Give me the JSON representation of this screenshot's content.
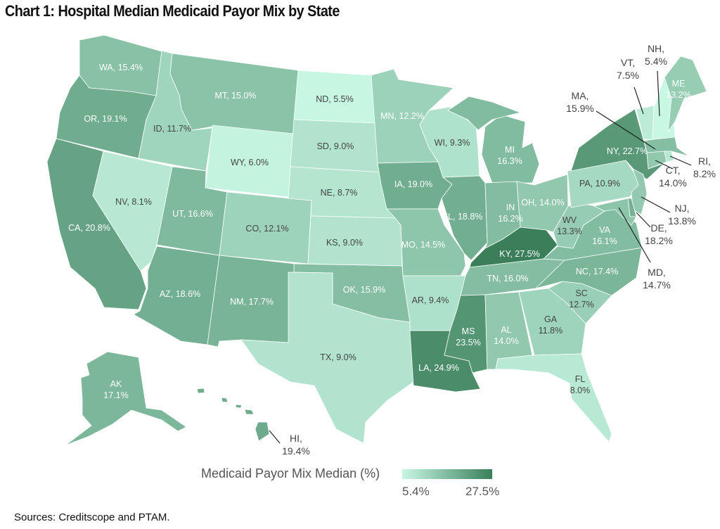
{
  "title": "Chart 1: Hospital Median Medicaid Payor Mix by State",
  "sources": "Sources: Creditscope and PTAM.",
  "chart_data": {
    "type": "choropleth",
    "title": "Chart 1: Hospital Median Medicaid Payor Mix by State",
    "legend": {
      "title": "Medicaid Payor Mix Median (%)",
      "min_label": "5.4%",
      "max_label": "27.5%",
      "min": 5.4,
      "max": 27.5,
      "min_color": "#c8f7e4",
      "max_color": "#3a7f5a",
      "placement": "bottom-center"
    },
    "states": [
      {
        "abbr": "WA",
        "value": 15.4,
        "label": [
          "WA, 15.4%"
        ]
      },
      {
        "abbr": "OR",
        "value": 19.1,
        "label": [
          "OR, 19.1%"
        ]
      },
      {
        "abbr": "CA",
        "value": 20.8,
        "label": [
          "CA, 20.8%"
        ]
      },
      {
        "abbr": "NV",
        "value": 8.1,
        "label": [
          "NV, 8.1%"
        ]
      },
      {
        "abbr": "ID",
        "value": 11.7,
        "label": [
          "ID, 11.7%"
        ]
      },
      {
        "abbr": "MT",
        "value": 15.0,
        "label": [
          "MT, 15.0%"
        ]
      },
      {
        "abbr": "WY",
        "value": 6.0,
        "label": [
          "WY, 6.0%"
        ]
      },
      {
        "abbr": "UT",
        "value": 16.6,
        "label": [
          "UT, 16.6%"
        ]
      },
      {
        "abbr": "AZ",
        "value": 18.6,
        "label": [
          "AZ, 18.6%"
        ]
      },
      {
        "abbr": "CO",
        "value": 12.1,
        "label": [
          "CO, 12.1%"
        ]
      },
      {
        "abbr": "NM",
        "value": 17.7,
        "label": [
          "NM, 17.7%"
        ]
      },
      {
        "abbr": "ND",
        "value": 5.5,
        "label": [
          "ND, 5.5%"
        ]
      },
      {
        "abbr": "SD",
        "value": 9.0,
        "label": [
          "SD, 9.0%"
        ]
      },
      {
        "abbr": "NE",
        "value": 8.7,
        "label": [
          "NE, 8.7%"
        ]
      },
      {
        "abbr": "KS",
        "value": 9.0,
        "label": [
          "KS, 9.0%"
        ]
      },
      {
        "abbr": "OK",
        "value": 15.9,
        "label": [
          "OK, 15.9%"
        ]
      },
      {
        "abbr": "TX",
        "value": 9.0,
        "label": [
          "TX, 9.0%"
        ]
      },
      {
        "abbr": "MN",
        "value": 12.2,
        "label": [
          "MN, 12.2%"
        ]
      },
      {
        "abbr": "IA",
        "value": 19.0,
        "label": [
          "IA, 19.0%"
        ]
      },
      {
        "abbr": "MO",
        "value": 14.5,
        "label": [
          "MO, 14.5%"
        ]
      },
      {
        "abbr": "AR",
        "value": 9.4,
        "label": [
          "AR, 9.4%"
        ]
      },
      {
        "abbr": "LA",
        "value": 24.9,
        "label": [
          "LA, 24.9%"
        ]
      },
      {
        "abbr": "WI",
        "value": 9.3,
        "label": [
          "WI, 9.3%"
        ]
      },
      {
        "abbr": "IL",
        "value": 18.8,
        "label": [
          "IL, 18.8%"
        ]
      },
      {
        "abbr": "MI",
        "value": 16.3,
        "label": [
          "MI",
          "16.3%"
        ]
      },
      {
        "abbr": "IN",
        "value": 16.2,
        "label": [
          "IN",
          "16.2%"
        ]
      },
      {
        "abbr": "OH",
        "value": 14.0,
        "label": [
          "OH, 14.0%"
        ]
      },
      {
        "abbr": "KY",
        "value": 27.5,
        "label": [
          "KY, 27.5%"
        ]
      },
      {
        "abbr": "TN",
        "value": 16.0,
        "label": [
          "TN, 16.0%"
        ]
      },
      {
        "abbr": "MS",
        "value": 23.5,
        "label": [
          "MS",
          "23.5%"
        ]
      },
      {
        "abbr": "AL",
        "value": 14.0,
        "label": [
          "AL",
          "14.0%"
        ]
      },
      {
        "abbr": "GA",
        "value": 11.8,
        "label": [
          "GA",
          "11.8%"
        ]
      },
      {
        "abbr": "FL",
        "value": 8.0,
        "label": [
          "FL",
          "8.0%"
        ]
      },
      {
        "abbr": "SC",
        "value": 12.7,
        "label": [
          "SC",
          "12.7%"
        ]
      },
      {
        "abbr": "NC",
        "value": 17.4,
        "label": [
          "NC, 17.4%"
        ]
      },
      {
        "abbr": "VA",
        "value": 16.1,
        "label": [
          "VA",
          "16.1%"
        ]
      },
      {
        "abbr": "WV",
        "value": 13.3,
        "label": [
          "WV",
          "13.3%"
        ]
      },
      {
        "abbr": "PA",
        "value": 10.9,
        "label": [
          "PA, 10.9%"
        ]
      },
      {
        "abbr": "NY",
        "value": 22.7,
        "label": [
          "NY, 22.7%"
        ]
      },
      {
        "abbr": "VT",
        "value": 7.5,
        "label": [
          "VT,",
          "7.5%"
        ]
      },
      {
        "abbr": "NH",
        "value": 5.4,
        "label": [
          "NH,",
          "5.4%"
        ]
      },
      {
        "abbr": "ME",
        "value": 13.2,
        "label": [
          "ME",
          "13.2%"
        ]
      },
      {
        "abbr": "MA",
        "value": 15.9,
        "label": [
          "MA,",
          "15.9%"
        ]
      },
      {
        "abbr": "RI",
        "value": 8.2,
        "label": [
          "RI,",
          "8.2%"
        ]
      },
      {
        "abbr": "CT",
        "value": 14.0,
        "label": [
          "CT,",
          "14.0%"
        ]
      },
      {
        "abbr": "NJ",
        "value": 13.8,
        "label": [
          "NJ,",
          "13.8%"
        ]
      },
      {
        "abbr": "DE",
        "value": 18.2,
        "label": [
          "DE,",
          "18.2%"
        ]
      },
      {
        "abbr": "MD",
        "value": 14.7,
        "label": [
          "MD,",
          "14.7%"
        ]
      },
      {
        "abbr": "AK",
        "value": 17.1,
        "label": [
          "AK",
          "17.1%"
        ]
      },
      {
        "abbr": "HI",
        "value": 19.4,
        "label": [
          "HI,",
          "19.4%"
        ]
      }
    ]
  }
}
